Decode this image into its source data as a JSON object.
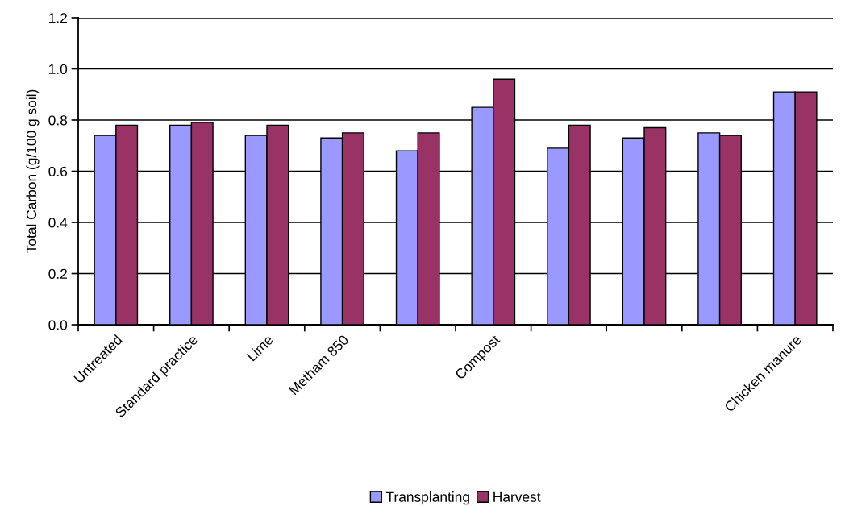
{
  "chart_data": {
    "type": "bar",
    "ylabel": "Total Carbon (g/100 g soil)",
    "categories": [
      "Untreated",
      "Standard practice",
      "Lime",
      "Metham 850",
      null,
      "Compost",
      null,
      null,
      null,
      "Chicken manure"
    ],
    "series": [
      {
        "name": "Transplanting",
        "color": "#9999ff",
        "values": [
          0.74,
          0.78,
          0.74,
          0.73,
          0.68,
          0.85,
          0.69,
          0.73,
          0.75,
          0.91
        ]
      },
      {
        "name": "Harvest",
        "color": "#993366",
        "values": [
          0.78,
          0.79,
          0.78,
          0.75,
          0.75,
          0.96,
          0.78,
          0.77,
          0.74,
          0.91
        ]
      }
    ],
    "ylim": [
      0,
      1.2
    ],
    "yticks": [
      {
        "value": 0,
        "label": "0.0"
      },
      0.2,
      0.4,
      0.6,
      0.8,
      {
        "value": 1.0,
        "label": "1.0"
      },
      1.2
    ],
    "grid": "y",
    "legend": "bottom"
  }
}
